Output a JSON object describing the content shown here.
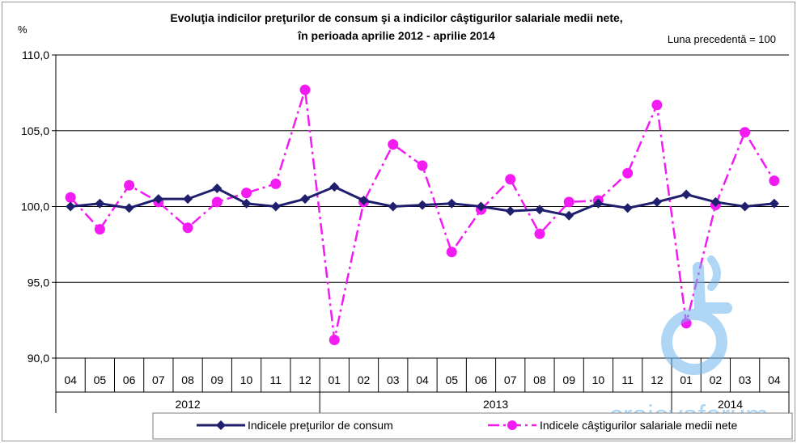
{
  "chart_data": {
    "type": "line",
    "title": "Evoluţia indicilor preţurilor de consum şi a indicilor câştigurilor salariale medii nete,",
    "subtitle": "în perioada aprilie 2012 - aprilie 2014",
    "note": "Luna precedentă = 100",
    "ylabel": "%",
    "ylim": [
      90,
      110
    ],
    "yticks": [
      "90,0",
      "95,0",
      "100,0",
      "105,0",
      "110,0"
    ],
    "ytick_values": [
      90,
      95,
      100,
      105,
      110
    ],
    "categories": [
      "04",
      "05",
      "06",
      "07",
      "08",
      "09",
      "10",
      "11",
      "12",
      "01",
      "02",
      "03",
      "04",
      "05",
      "06",
      "07",
      "08",
      "09",
      "10",
      "11",
      "12",
      "01",
      "02",
      "03",
      "04"
    ],
    "years": [
      {
        "label": "2012",
        "start": 0,
        "end": 9
      },
      {
        "label": "2013",
        "start": 9,
        "end": 21
      },
      {
        "label": "2014",
        "start": 21,
        "end": 25
      }
    ],
    "series": [
      {
        "name": "Indicele preţurilor de consum",
        "color": "#1f1f6e",
        "style": "solid",
        "marker": "diamond",
        "values": [
          100.0,
          100.2,
          99.9,
          100.5,
          100.5,
          101.2,
          100.2,
          100.0,
          100.5,
          101.3,
          100.4,
          100.0,
          100.1,
          100.2,
          100.0,
          99.7,
          99.8,
          99.4,
          100.2,
          99.9,
          100.3,
          100.8,
          100.3,
          100.0,
          100.2
        ]
      },
      {
        "name": "Indicele câştigurilor salariale medii nete",
        "color": "#f21cf2",
        "style": "dashdot",
        "marker": "circle",
        "values": [
          100.6,
          98.5,
          101.4,
          100.3,
          98.6,
          100.3,
          100.9,
          101.5,
          107.7,
          91.2,
          100.3,
          104.1,
          102.7,
          97.0,
          99.8,
          101.8,
          98.2,
          100.3,
          100.4,
          102.2,
          106.7,
          92.3,
          100.1,
          104.9,
          101.7
        ]
      }
    ],
    "grid": true,
    "legend_position": "bottom"
  },
  "watermark": {
    "text": "craiovaforum",
    "icon": "wheelchair-logo-icon"
  }
}
